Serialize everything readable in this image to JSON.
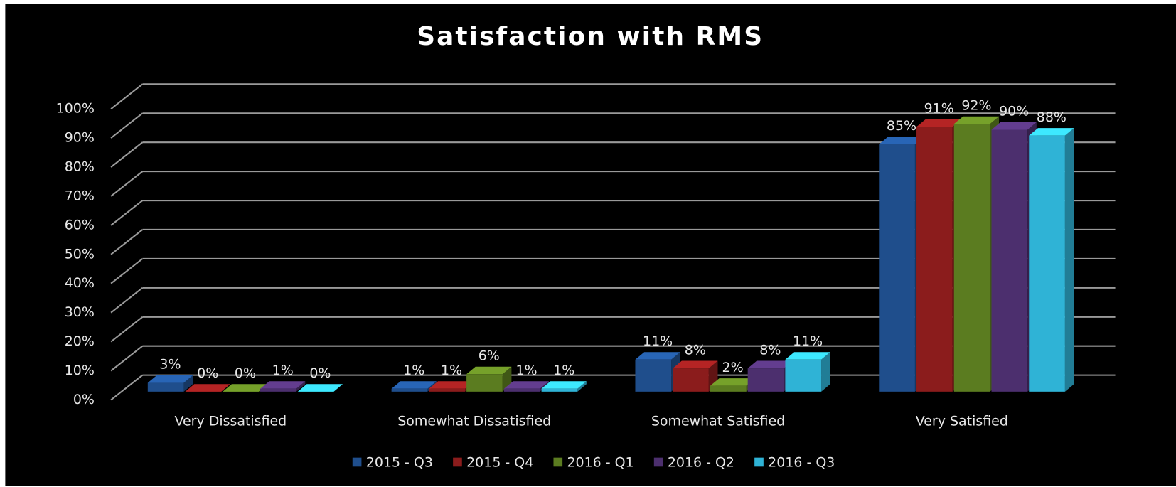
{
  "chart_data": {
    "type": "bar3d",
    "title": "Satisfaction with RMS",
    "categories": [
      "Very Dissatisfied",
      "Somewhat Dissatisfied",
      "Somewhat Satisfied",
      "Very Satisfied"
    ],
    "series": [
      {
        "name": "2015 - Q3",
        "color": "#1f4e8c",
        "values": [
          3,
          1,
          11,
          85
        ],
        "value_labels": [
          "3%",
          "1%",
          "11%",
          "85%"
        ]
      },
      {
        "name": "2015 - Q4",
        "color": "#8b1c1c",
        "values": [
          0,
          1,
          8,
          91
        ],
        "value_labels": [
          "0%",
          "1%",
          "8%",
          "91%"
        ]
      },
      {
        "name": "2016 - Q1",
        "color": "#5b7c20",
        "values": [
          0,
          6,
          2,
          92
        ],
        "value_labels": [
          "0%",
          "6%",
          "2%",
          "92%"
        ]
      },
      {
        "name": "2016 - Q2",
        "color": "#4c2f6e",
        "values": [
          1,
          1,
          8,
          90
        ],
        "value_labels": [
          "1%",
          "1%",
          "8%",
          "90%"
        ]
      },
      {
        "name": "2016 - Q3",
        "color": "#2fb3d6",
        "values": [
          0,
          1,
          11,
          88
        ],
        "value_labels": [
          "0%",
          "1%",
          "11%",
          "88%"
        ]
      }
    ],
    "ylim": [
      0,
      100
    ],
    "yticks": [
      {
        "value": 0,
        "label": "0%"
      },
      {
        "value": 10,
        "label": "10%"
      },
      {
        "value": 20,
        "label": "20%"
      },
      {
        "value": 30,
        "label": "30%"
      },
      {
        "value": 40,
        "label": "40%"
      },
      {
        "value": 50,
        "label": "50%"
      },
      {
        "value": 60,
        "label": "60%"
      },
      {
        "value": 70,
        "label": "70%"
      },
      {
        "value": 80,
        "label": "80%"
      },
      {
        "value": 90,
        "label": "90%"
      },
      {
        "value": 100,
        "label": "100%"
      }
    ],
    "grid": true,
    "legend": "bottom"
  }
}
